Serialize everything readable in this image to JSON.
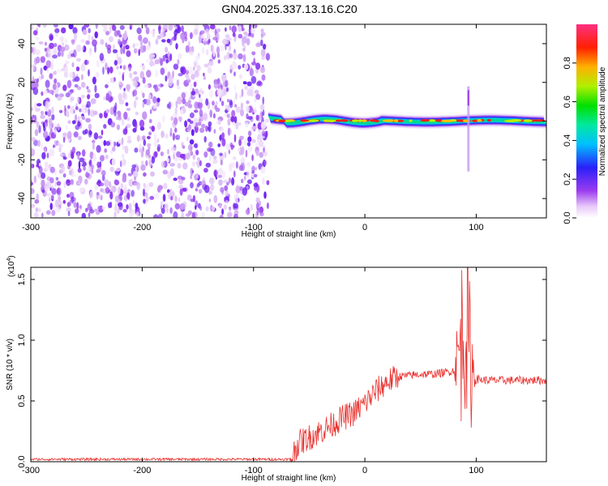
{
  "title": "GN04.2025.337.13.16.C20",
  "colors": {
    "axis": "#000000",
    "snr_line": "#e8322f",
    "spec_bg": "#ffffff"
  },
  "chart_data": [
    {
      "type": "heatmap",
      "title": "GN04.2025.337.13.16.C20",
      "xlabel": "Height of straight line (km)",
      "ylabel": "Frequency (Hz)",
      "xlim": [
        -300,
        163
      ],
      "ylim": [
        -50,
        50
      ],
      "xticks": [
        -300,
        -200,
        -100,
        0,
        100
      ],
      "yticks": [
        -40,
        -20,
        0,
        20,
        40
      ],
      "colorbar": {
        "label": "Normalized spectral amplitude",
        "range": [
          0,
          1
        ],
        "ticks": [
          "0.0",
          "0.2",
          "0.4",
          "0.6",
          "0.8"
        ],
        "colormap": "rainbow (white-purple-blue-cyan-green-yellow-red-magenta)"
      },
      "description_values": {
        "noise_region_x": [
          -300,
          -87
        ],
        "noise_max_amplitude": 0.25,
        "band_center_freq": 0,
        "band_start_x": -87,
        "band_peak_amplitude": 1.0,
        "feature_x": 93,
        "feature_freq_range": [
          -26,
          18
        ]
      }
    },
    {
      "type": "line",
      "xlabel": "Height of straight line (km)",
      "ylabel": "SNR (10 * v/v)",
      "scale_note": "(x10",
      "scale_exp": "4",
      "xlim": [
        -300,
        163
      ],
      "ylim": [
        0,
        1.6
      ],
      "xticks": [
        -300,
        -200,
        -100,
        0,
        100
      ],
      "yticks": [
        "0.0",
        "0.5",
        "1.0",
        "1.5"
      ],
      "series": [
        {
          "x": [
            -300,
            -200,
            -100,
            -67,
            -60,
            -50,
            -40,
            -30,
            -20,
            -10,
            0,
            10,
            20,
            30,
            40,
            50,
            60,
            70,
            80,
            85,
            90,
            95,
            100,
            110,
            120,
            130,
            140,
            150,
            163
          ],
          "values": [
            0.02,
            0.02,
            0.02,
            0.02,
            0.15,
            0.2,
            0.25,
            0.3,
            0.36,
            0.4,
            0.48,
            0.58,
            0.66,
            0.7,
            0.71,
            0.72,
            0.72,
            0.73,
            0.75,
            0.9,
            1.2,
            0.8,
            0.68,
            0.67,
            0.67,
            0.67,
            0.67,
            0.67,
            0.67
          ]
        }
      ]
    }
  ]
}
